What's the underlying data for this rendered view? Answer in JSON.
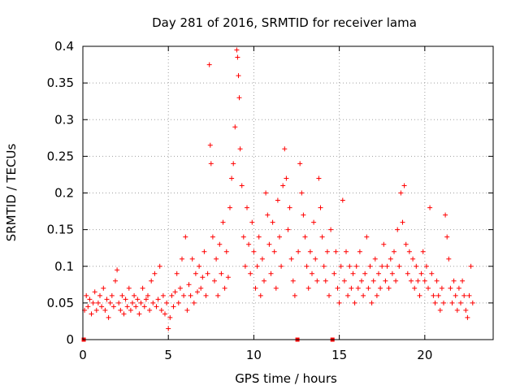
{
  "chart_data": {
    "type": "scatter",
    "title": "Day 281 of 2016, SRMTID for receiver lama",
    "xlabel": "GPS time / hours",
    "ylabel": "SRMTID / TECUs",
    "xlim": [
      0,
      24
    ],
    "ylim": [
      0,
      0.4
    ],
    "xticks": [
      0,
      5,
      10,
      15,
      20
    ],
    "xtick_labels": [
      "0",
      "5",
      "10",
      "15",
      "20"
    ],
    "yticks": [
      0,
      0.05,
      0.1,
      0.15,
      0.2,
      0.25,
      0.3,
      0.35,
      0.4
    ],
    "ytick_labels": [
      "0",
      "0.05",
      "0.1",
      "0.15",
      "0.2",
      "0.25",
      "0.3",
      "0.35",
      "0.4"
    ],
    "grid": true,
    "marker": "+",
    "series_color": "#ff0000",
    "gap_markers_x": [
      0.05,
      12.55,
      14.6
    ],
    "series": [
      {
        "name": "SRMTID",
        "points": [
          [
            0.1,
            0.04
          ],
          [
            0.2,
            0.06
          ],
          [
            0.3,
            0.045
          ],
          [
            0.4,
            0.055
          ],
          [
            0.5,
            0.035
          ],
          [
            0.6,
            0.05
          ],
          [
            0.7,
            0.065
          ],
          [
            0.8,
            0.04
          ],
          [
            0.9,
            0.05
          ],
          [
            1.0,
            0.06
          ],
          [
            1.1,
            0.045
          ],
          [
            1.2,
            0.07
          ],
          [
            1.3,
            0.04
          ],
          [
            1.4,
            0.055
          ],
          [
            1.5,
            0.03
          ],
          [
            1.6,
            0.05
          ],
          [
            1.7,
            0.06
          ],
          [
            1.8,
            0.045
          ],
          [
            1.9,
            0.08
          ],
          [
            2.0,
            0.095
          ],
          [
            2.1,
            0.05
          ],
          [
            2.2,
            0.04
          ],
          [
            2.3,
            0.06
          ],
          [
            2.4,
            0.035
          ],
          [
            2.5,
            0.055
          ],
          [
            2.6,
            0.045
          ],
          [
            2.7,
            0.07
          ],
          [
            2.8,
            0.04
          ],
          [
            2.9,
            0.05
          ],
          [
            3.0,
            0.06
          ],
          [
            3.1,
            0.045
          ],
          [
            3.2,
            0.055
          ],
          [
            3.3,
            0.035
          ],
          [
            3.4,
            0.05
          ],
          [
            3.5,
            0.07
          ],
          [
            3.6,
            0.045
          ],
          [
            3.7,
            0.055
          ],
          [
            3.8,
            0.06
          ],
          [
            3.9,
            0.04
          ],
          [
            4.0,
            0.08
          ],
          [
            4.1,
            0.05
          ],
          [
            4.2,
            0.09
          ],
          [
            4.3,
            0.045
          ],
          [
            4.4,
            0.055
          ],
          [
            4.5,
            0.1
          ],
          [
            4.6,
            0.04
          ],
          [
            4.7,
            0.06
          ],
          [
            4.8,
            0.035
          ],
          [
            4.9,
            0.05
          ],
          [
            5.0,
            0.015
          ],
          [
            5.1,
            0.03
          ],
          [
            5.2,
            0.06
          ],
          [
            5.3,
            0.045
          ],
          [
            5.4,
            0.065
          ],
          [
            5.5,
            0.09
          ],
          [
            5.6,
            0.05
          ],
          [
            5.7,
            0.07
          ],
          [
            5.8,
            0.11
          ],
          [
            5.9,
            0.06
          ],
          [
            6.0,
            0.14
          ],
          [
            6.1,
            0.04
          ],
          [
            6.2,
            0.075
          ],
          [
            6.3,
            0.06
          ],
          [
            6.4,
            0.11
          ],
          [
            6.5,
            0.05
          ],
          [
            6.6,
            0.09
          ],
          [
            6.7,
            0.065
          ],
          [
            6.8,
            0.1
          ],
          [
            6.9,
            0.07
          ],
          [
            7.0,
            0.085
          ],
          [
            7.1,
            0.12
          ],
          [
            7.2,
            0.06
          ],
          [
            7.3,
            0.09
          ],
          [
            7.4,
            0.375
          ],
          [
            7.45,
            0.265
          ],
          [
            7.5,
            0.24
          ],
          [
            7.6,
            0.14
          ],
          [
            7.7,
            0.08
          ],
          [
            7.8,
            0.11
          ],
          [
            7.9,
            0.06
          ],
          [
            8.0,
            0.13
          ],
          [
            8.1,
            0.09
          ],
          [
            8.2,
            0.16
          ],
          [
            8.3,
            0.07
          ],
          [
            8.4,
            0.12
          ],
          [
            8.5,
            0.085
          ],
          [
            8.6,
            0.18
          ],
          [
            8.7,
            0.22
          ],
          [
            8.8,
            0.24
          ],
          [
            8.9,
            0.29
          ],
          [
            9.0,
            0.395
          ],
          [
            9.05,
            0.385
          ],
          [
            9.1,
            0.36
          ],
          [
            9.15,
            0.33
          ],
          [
            9.2,
            0.26
          ],
          [
            9.3,
            0.21
          ],
          [
            9.4,
            0.14
          ],
          [
            9.5,
            0.1
          ],
          [
            9.6,
            0.18
          ],
          [
            9.7,
            0.13
          ],
          [
            9.8,
            0.09
          ],
          [
            9.9,
            0.16
          ],
          [
            10.0,
            0.12
          ],
          [
            10.1,
            0.07
          ],
          [
            10.2,
            0.1
          ],
          [
            10.3,
            0.14
          ],
          [
            10.4,
            0.06
          ],
          [
            10.5,
            0.11
          ],
          [
            10.6,
            0.08
          ],
          [
            10.7,
            0.2
          ],
          [
            10.8,
            0.17
          ],
          [
            10.9,
            0.13
          ],
          [
            11.0,
            0.09
          ],
          [
            11.1,
            0.16
          ],
          [
            11.2,
            0.12
          ],
          [
            11.3,
            0.07
          ],
          [
            11.4,
            0.19
          ],
          [
            11.5,
            0.14
          ],
          [
            11.6,
            0.1
          ],
          [
            11.7,
            0.21
          ],
          [
            11.8,
            0.26
          ],
          [
            11.9,
            0.22
          ],
          [
            12.0,
            0.15
          ],
          [
            12.1,
            0.18
          ],
          [
            12.2,
            0.11
          ],
          [
            12.3,
            0.08
          ],
          [
            12.4,
            0.06
          ],
          [
            12.6,
            0.12
          ],
          [
            12.7,
            0.24
          ],
          [
            12.8,
            0.2
          ],
          [
            12.9,
            0.17
          ],
          [
            13.0,
            0.14
          ],
          [
            13.1,
            0.1
          ],
          [
            13.2,
            0.07
          ],
          [
            13.3,
            0.12
          ],
          [
            13.4,
            0.09
          ],
          [
            13.5,
            0.16
          ],
          [
            13.6,
            0.11
          ],
          [
            13.7,
            0.08
          ],
          [
            13.8,
            0.22
          ],
          [
            13.9,
            0.18
          ],
          [
            14.0,
            0.14
          ],
          [
            14.1,
            0.1
          ],
          [
            14.2,
            0.08
          ],
          [
            14.3,
            0.12
          ],
          [
            14.4,
            0.06
          ],
          [
            14.5,
            0.15
          ],
          [
            14.7,
            0.09
          ],
          [
            14.8,
            0.12
          ],
          [
            14.9,
            0.07
          ],
          [
            15.0,
            0.05
          ],
          [
            15.1,
            0.1
          ],
          [
            15.2,
            0.19
          ],
          [
            15.3,
            0.08
          ],
          [
            15.4,
            0.12
          ],
          [
            15.5,
            0.06
          ],
          [
            15.6,
            0.1
          ],
          [
            15.7,
            0.07
          ],
          [
            15.8,
            0.09
          ],
          [
            15.9,
            0.05
          ],
          [
            16.0,
            0.1
          ],
          [
            16.1,
            0.07
          ],
          [
            16.2,
            0.12
          ],
          [
            16.3,
            0.08
          ],
          [
            16.4,
            0.06
          ],
          [
            16.5,
            0.09
          ],
          [
            16.6,
            0.14
          ],
          [
            16.7,
            0.07
          ],
          [
            16.8,
            0.1
          ],
          [
            16.9,
            0.05
          ],
          [
            17.0,
            0.08
          ],
          [
            17.1,
            0.11
          ],
          [
            17.2,
            0.06
          ],
          [
            17.3,
            0.09
          ],
          [
            17.4,
            0.07
          ],
          [
            17.5,
            0.1
          ],
          [
            17.6,
            0.13
          ],
          [
            17.7,
            0.08
          ],
          [
            17.8,
            0.1
          ],
          [
            17.9,
            0.07
          ],
          [
            18.0,
            0.11
          ],
          [
            18.1,
            0.09
          ],
          [
            18.2,
            0.12
          ],
          [
            18.3,
            0.08
          ],
          [
            18.4,
            0.15
          ],
          [
            18.5,
            0.1
          ],
          [
            18.6,
            0.2
          ],
          [
            18.7,
            0.16
          ],
          [
            18.8,
            0.21
          ],
          [
            18.9,
            0.13
          ],
          [
            19.0,
            0.09
          ],
          [
            19.1,
            0.12
          ],
          [
            19.2,
            0.08
          ],
          [
            19.3,
            0.11
          ],
          [
            19.4,
            0.07
          ],
          [
            19.5,
            0.1
          ],
          [
            19.6,
            0.08
          ],
          [
            19.7,
            0.06
          ],
          [
            19.8,
            0.09
          ],
          [
            19.9,
            0.12
          ],
          [
            20.0,
            0.08
          ],
          [
            20.1,
            0.1
          ],
          [
            20.2,
            0.07
          ],
          [
            20.3,
            0.18
          ],
          [
            20.4,
            0.09
          ],
          [
            20.5,
            0.06
          ],
          [
            20.6,
            0.05
          ],
          [
            20.7,
            0.08
          ],
          [
            20.8,
            0.06
          ],
          [
            20.9,
            0.04
          ],
          [
            21.0,
            0.07
          ],
          [
            21.1,
            0.05
          ],
          [
            21.2,
            0.17
          ],
          [
            21.3,
            0.14
          ],
          [
            21.4,
            0.11
          ],
          [
            21.5,
            0.07
          ],
          [
            21.6,
            0.05
          ],
          [
            21.7,
            0.08
          ],
          [
            21.8,
            0.06
          ],
          [
            21.9,
            0.04
          ],
          [
            22.0,
            0.07
          ],
          [
            22.1,
            0.05
          ],
          [
            22.2,
            0.08
          ],
          [
            22.3,
            0.06
          ],
          [
            22.4,
            0.04
          ],
          [
            22.5,
            0.03
          ],
          [
            22.6,
            0.06
          ],
          [
            22.7,
            0.1
          ],
          [
            22.8,
            0.05
          ]
        ]
      }
    ]
  }
}
